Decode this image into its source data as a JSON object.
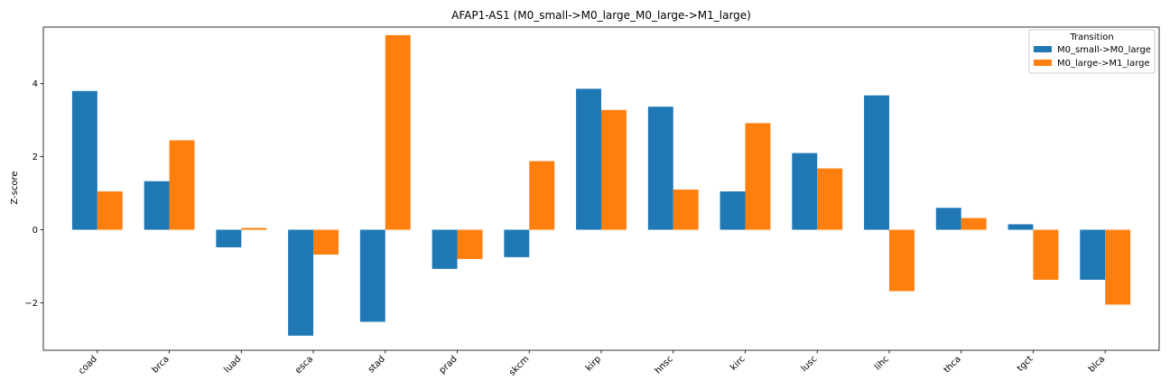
{
  "chart_data": {
    "type": "bar",
    "title": "AFAP1-AS1 (M0_small->M0_large_M0_large->M1_large)",
    "xlabel": "",
    "ylabel": "Z-score",
    "ylim": [
      -3.3,
      5.55
    ],
    "yticks": [
      -2,
      0,
      2,
      4
    ],
    "grid": false,
    "legend": {
      "title": "Transition",
      "placement": "top-right"
    },
    "categories": [
      "coad",
      "brca",
      "luad",
      "esca",
      "stad",
      "prad",
      "skcm",
      "kirp",
      "hnsc",
      "kirc",
      "lusc",
      "lihc",
      "thca",
      "tgct",
      "blca"
    ],
    "series": [
      {
        "name": "M0_small->M0_large",
        "color": "#1f77b4",
        "values": [
          3.8,
          1.33,
          -0.48,
          -2.9,
          -2.52,
          -1.07,
          -0.75,
          3.86,
          3.37,
          1.05,
          2.1,
          3.68,
          0.6,
          0.15,
          -1.37
        ]
      },
      {
        "name": "M0_large->M1_large",
        "color": "#ff7f0e",
        "values": [
          1.05,
          2.45,
          0.05,
          -0.68,
          5.33,
          -0.8,
          1.88,
          3.28,
          1.1,
          2.92,
          1.68,
          -1.68,
          0.32,
          -1.37,
          -2.05
        ]
      }
    ]
  }
}
